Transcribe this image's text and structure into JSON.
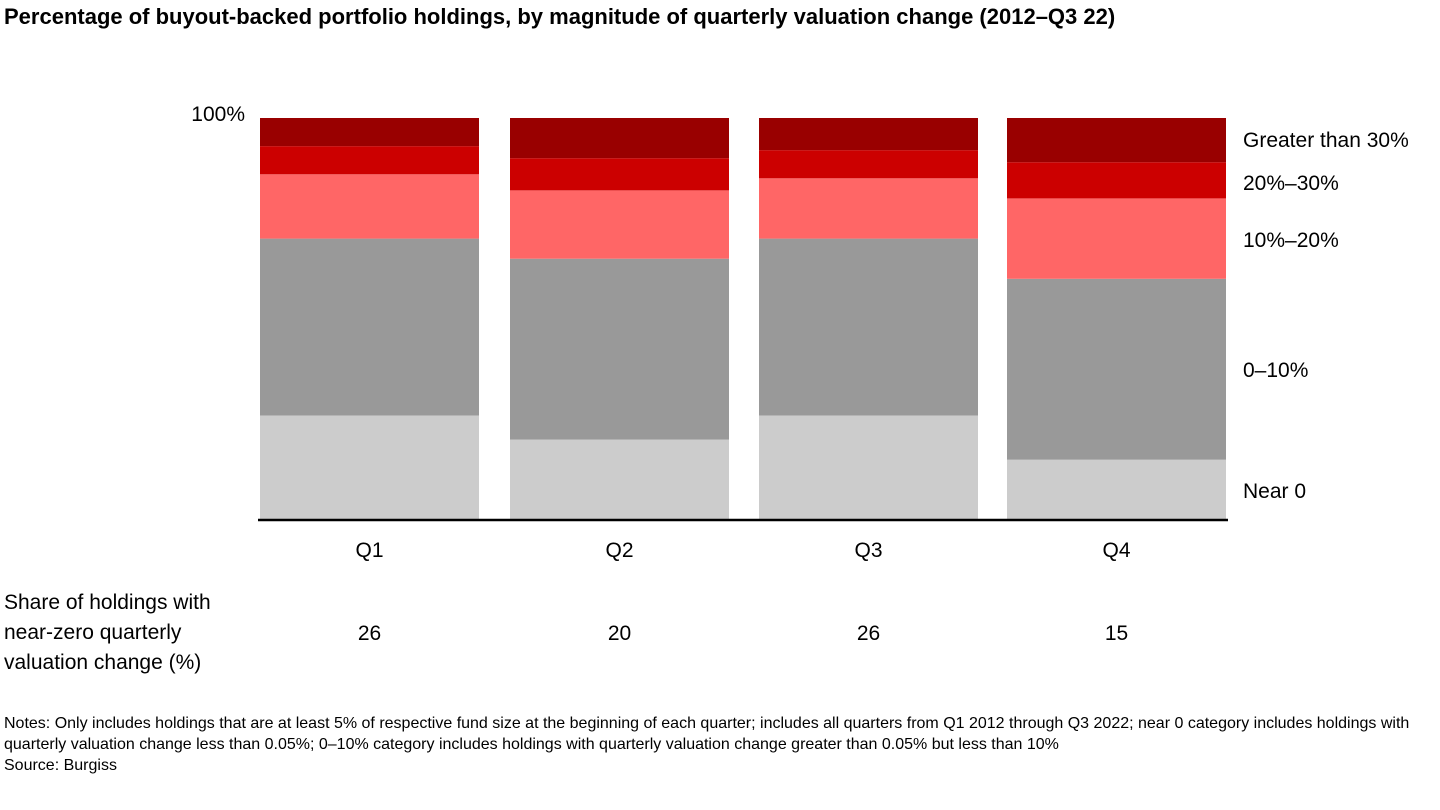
{
  "title": "Percentage of buyout-backed portfolio holdings, by magnitude of quarterly valuation change (2012–Q3 22)",
  "chart_data": {
    "type": "bar",
    "stacked": true,
    "normalized": true,
    "categories": [
      "Q1",
      "Q2",
      "Q3",
      "Q4"
    ],
    "series": [
      {
        "name": "Near 0",
        "color": "#cccccc",
        "values": [
          26,
          20,
          26,
          15
        ]
      },
      {
        "name": "0–10%",
        "color": "#999999",
        "values": [
          44,
          45,
          44,
          45
        ]
      },
      {
        "name": "10%–20%",
        "color": "#ff6666",
        "values": [
          16,
          17,
          15,
          20
        ]
      },
      {
        "name": "20%–30%",
        "color": "#cc0000",
        "values": [
          7,
          8,
          7,
          9
        ]
      },
      {
        "name": "Greater than 30%",
        "color": "#990000",
        "values": [
          7,
          10,
          8,
          11
        ]
      }
    ],
    "ylim": [
      0,
      100
    ],
    "y_tick_label": "100%",
    "legend_placement": "right"
  },
  "share_row": {
    "label_lines": [
      "Share of holdings with",
      "near-zero quarterly",
      "valuation change (%)"
    ],
    "values": [
      "26",
      "20",
      "26",
      "15"
    ]
  },
  "notes": [
    "Notes: Only includes holdings that are at least 5% of respective fund size at the beginning of each quarter; includes all quarters from Q1 2012 through Q3 2022; near 0 category includes holdings with quarterly valuation change less than 0.05%; 0–10% category includes holdings with quarterly valuation change greater than 0.05% but less than 10%",
    "Source: Burgiss"
  ]
}
